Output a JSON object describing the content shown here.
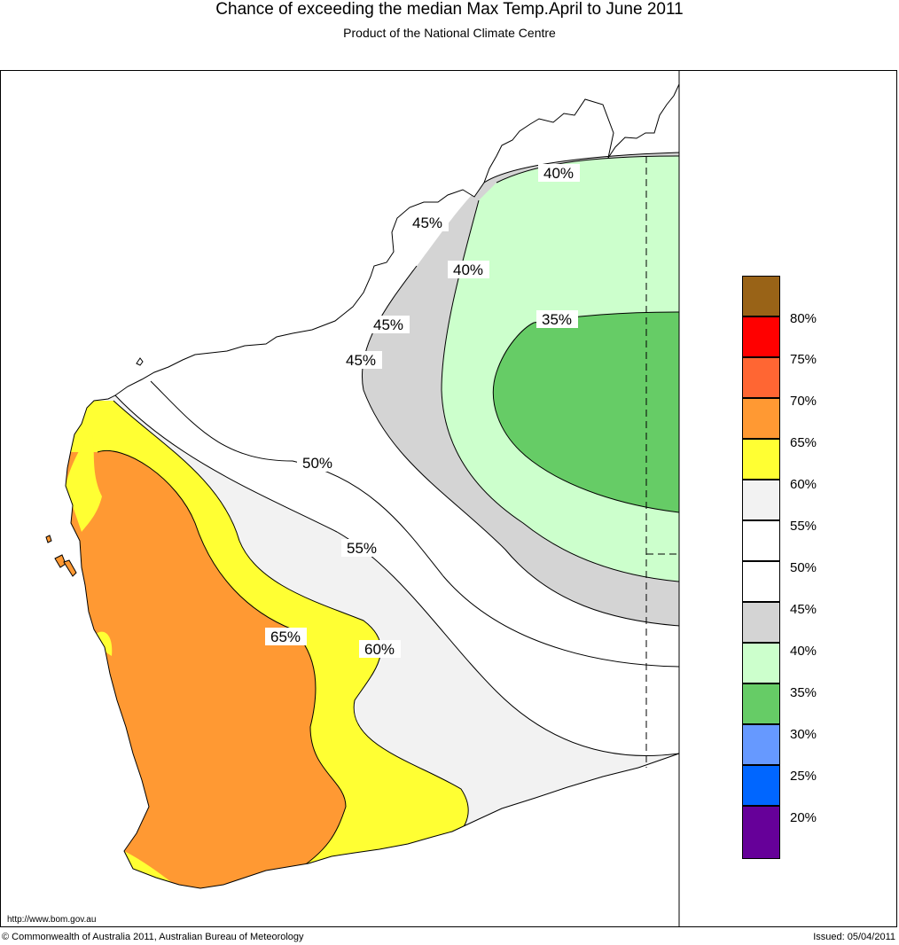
{
  "header": {
    "title": "Chance of exceeding the median Max Temp.April to June 2011",
    "subtitle": "Product of the National Climate Centre"
  },
  "contour_labels": [
    "40%",
    "45%",
    "40%",
    "45%",
    "35%",
    "45%",
    "50%",
    "55%",
    "65%",
    "60%"
  ],
  "legend": {
    "bins": [
      {
        "label": "80%",
        "color": "#996317"
      },
      {
        "label": "75%",
        "color": "#ff0000"
      },
      {
        "label": "70%",
        "color": "#ff6633"
      },
      {
        "label": "65%",
        "color": "#ff9933"
      },
      {
        "label": "60%",
        "color": "#ffff33"
      },
      {
        "label": "55%",
        "color": "#f2f2f2"
      },
      {
        "label": "50%",
        "color": "#ffffff"
      },
      {
        "label": "45%",
        "color": "#ffffff"
      },
      {
        "label": "40%",
        "color": "#d4d4d4"
      },
      {
        "label": "35%",
        "color": "#ccffcc"
      },
      {
        "label": "30%",
        "color": "#66cc66"
      },
      {
        "label": "25%",
        "color": "#6699ff"
      },
      {
        "label": "20%",
        "color": "#0066ff"
      },
      {
        "label": "",
        "color": "#660099"
      }
    ]
  },
  "footer": {
    "url": "http://www.bom.gov.au",
    "copyright": "© Commonwealth of Australia 2011, Australian Bureau of Meteorology",
    "issued": "Issued: 05/04/2011"
  }
}
